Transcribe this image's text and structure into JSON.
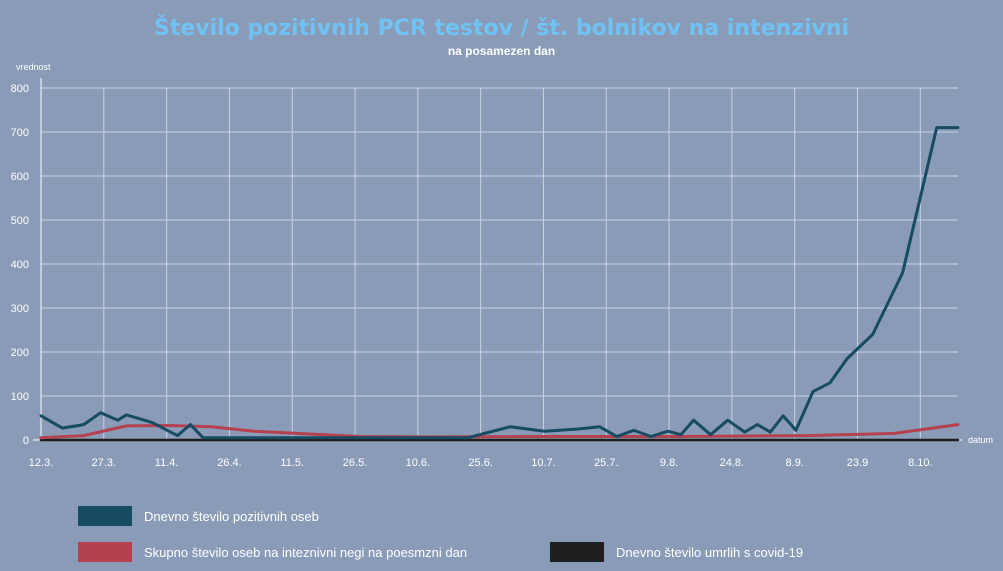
{
  "chart_data": {
    "type": "line",
    "title": "Število pozitivnih PCR testov / št. bolnikov na intenzivni",
    "subtitle": "na posamezen dan",
    "ylabel": "vrednost",
    "xlabel": "datum",
    "ylim": [
      0,
      820
    ],
    "yticks": [
      0,
      100,
      200,
      300,
      400,
      500,
      600,
      700,
      800
    ],
    "xticks": [
      "12.3.",
      "27.3.",
      "11.4.",
      "26.4.",
      "11.5.",
      "26.5.",
      "10.6.",
      "25.6.",
      "10.7.",
      "25.7.",
      "9.8.",
      "24.8.",
      "8.9.",
      "23.9",
      "8.10."
    ],
    "x_domain": [
      0,
      215
    ],
    "grid": true,
    "legend_position": "bottom",
    "series": [
      {
        "name": "Dnevno število pozitivnih oseb",
        "color": "#164b62",
        "x": [
          0,
          5,
          10,
          14,
          18,
          20,
          26,
          32,
          35,
          38,
          100,
          110,
          118,
          126,
          131,
          135,
          139,
          143,
          147,
          150,
          153,
          157,
          161,
          165,
          168,
          171,
          174,
          177,
          181,
          185,
          189,
          195,
          202,
          210,
          215
        ],
        "values": [
          55,
          27,
          35,
          62,
          45,
          57,
          40,
          10,
          35,
          5,
          5,
          30,
          20,
          25,
          30,
          8,
          22,
          8,
          20,
          12,
          45,
          12,
          45,
          18,
          35,
          18,
          55,
          22,
          110,
          130,
          185,
          240,
          380,
          710,
          710
        ]
      },
      {
        "name": "Skupno število oseb na inteznivni negi na poesmzni dan",
        "color": "#b5414f",
        "x": [
          0,
          10,
          20,
          30,
          40,
          50,
          60,
          75,
          90,
          120,
          150,
          180,
          200,
          215
        ],
        "values": [
          5,
          10,
          32,
          33,
          30,
          20,
          15,
          8,
          7,
          8,
          8,
          10,
          15,
          35
        ]
      },
      {
        "name": "Dnevno število umrlih s covid-19",
        "color": "#1f1f1f",
        "x": [
          0,
          215
        ],
        "values": [
          0,
          0
        ]
      }
    ]
  }
}
